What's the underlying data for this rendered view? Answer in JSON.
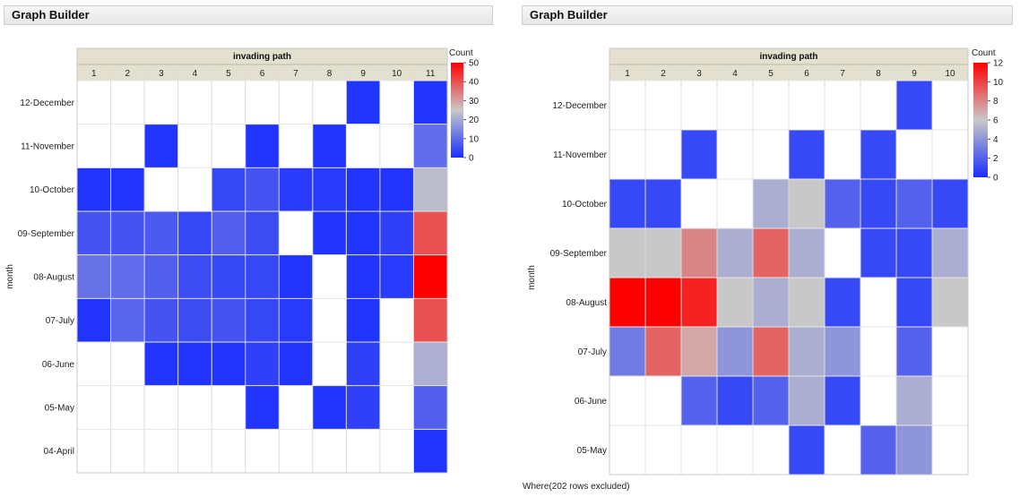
{
  "chart_data": [
    {
      "type": "heatmap",
      "window_title": "Graph Builder",
      "title": "invading path",
      "xlabel": "invading path",
      "ylabel": "month",
      "x_categories": [
        "1",
        "2",
        "3",
        "4",
        "5",
        "6",
        "7",
        "8",
        "9",
        "10",
        "11"
      ],
      "y_categories": [
        "12-December",
        "11-November",
        "10-October",
        "09-September",
        "08-August",
        "07-July",
        "06-June",
        "05-May",
        "04-April"
      ],
      "values": [
        [
          null,
          null,
          null,
          null,
          null,
          null,
          null,
          null,
          1,
          null,
          1
        ],
        [
          null,
          null,
          1,
          null,
          null,
          1,
          null,
          1,
          null,
          null,
          10
        ],
        [
          1,
          1,
          null,
          null,
          4,
          6,
          2,
          2,
          1,
          1,
          23
        ],
        [
          6,
          6,
          7,
          4,
          8,
          5,
          null,
          1,
          1,
          3,
          40
        ],
        [
          11,
          10,
          8,
          5,
          4,
          4,
          1,
          null,
          1,
          2,
          50
        ],
        [
          1,
          9,
          6,
          5,
          6,
          4,
          2,
          null,
          1,
          null,
          40
        ],
        [
          null,
          null,
          1,
          1,
          1,
          3,
          1,
          null,
          3,
          null,
          21
        ],
        [
          null,
          null,
          null,
          null,
          null,
          1,
          null,
          1,
          3,
          null,
          8
        ],
        [
          null,
          null,
          null,
          null,
          null,
          null,
          null,
          null,
          null,
          null,
          1
        ]
      ],
      "legend": {
        "title": "Count",
        "ticks": [
          0,
          10,
          20,
          30,
          40,
          50
        ],
        "min": 0,
        "max": 50
      },
      "colors": {
        "low": "#1a2eff",
        "mid": "#c8c8c8",
        "high": "#ff0000"
      }
    },
    {
      "type": "heatmap",
      "window_title": "Graph Builder",
      "title": "invading path",
      "xlabel": "invading path",
      "ylabel": "month",
      "x_categories": [
        "1",
        "2",
        "3",
        "4",
        "5",
        "6",
        "7",
        "8",
        "9",
        "10"
      ],
      "y_categories": [
        "12-December",
        "11-November",
        "10-October",
        "09-September",
        "08-August",
        "07-July",
        "06-June",
        "05-May"
      ],
      "values": [
        [
          null,
          null,
          null,
          null,
          null,
          null,
          null,
          null,
          1,
          null
        ],
        [
          null,
          null,
          1,
          null,
          null,
          1,
          null,
          1,
          null,
          null
        ],
        [
          1,
          1,
          null,
          null,
          5,
          6,
          2,
          1,
          2,
          1
        ],
        [
          6,
          6,
          8,
          5,
          9,
          5,
          null,
          1,
          1,
          5
        ],
        [
          12,
          12,
          11,
          6,
          5,
          6,
          1,
          null,
          1,
          6
        ],
        [
          3,
          9,
          7,
          4,
          9,
          5,
          4,
          null,
          2,
          null
        ],
        [
          null,
          null,
          2,
          1,
          2,
          5,
          1,
          null,
          5,
          null
        ],
        [
          null,
          null,
          null,
          null,
          null,
          1,
          null,
          2,
          4,
          null
        ]
      ],
      "legend": {
        "title": "Count",
        "ticks": [
          0,
          2,
          4,
          6,
          8,
          10,
          12
        ],
        "min": 0,
        "max": 12
      },
      "colors": {
        "low": "#1a2eff",
        "mid": "#c8c8c8",
        "high": "#ff0000"
      },
      "note": "Where(202 rows excluded)"
    }
  ]
}
